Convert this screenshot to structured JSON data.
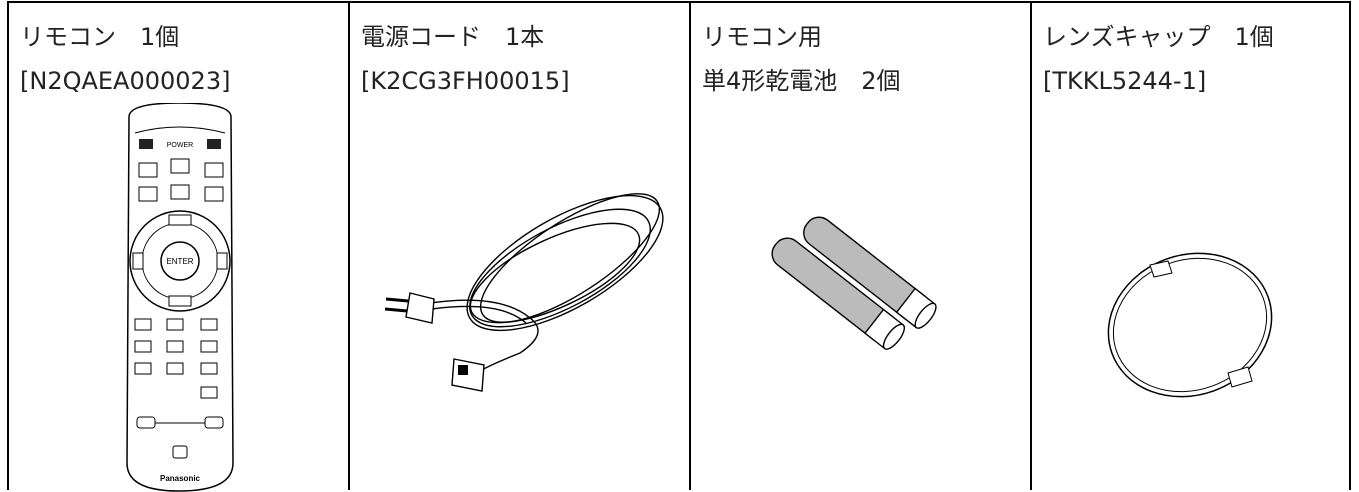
{
  "items": [
    {
      "lines": [
        "リモコン　1個",
        "[N2QAEA000023]"
      ],
      "remote_labels": [
        "POWER",
        "ENTER",
        "Panasonic"
      ]
    },
    {
      "lines": [
        "電源コード　1本",
        "[K2CG3FH00015]"
      ]
    },
    {
      "lines": [
        "リモコン用",
        "単4形乾電池　2個"
      ]
    },
    {
      "lines": [
        "レンズキャップ　1個",
        "[TKKL5244-1]"
      ]
    }
  ]
}
